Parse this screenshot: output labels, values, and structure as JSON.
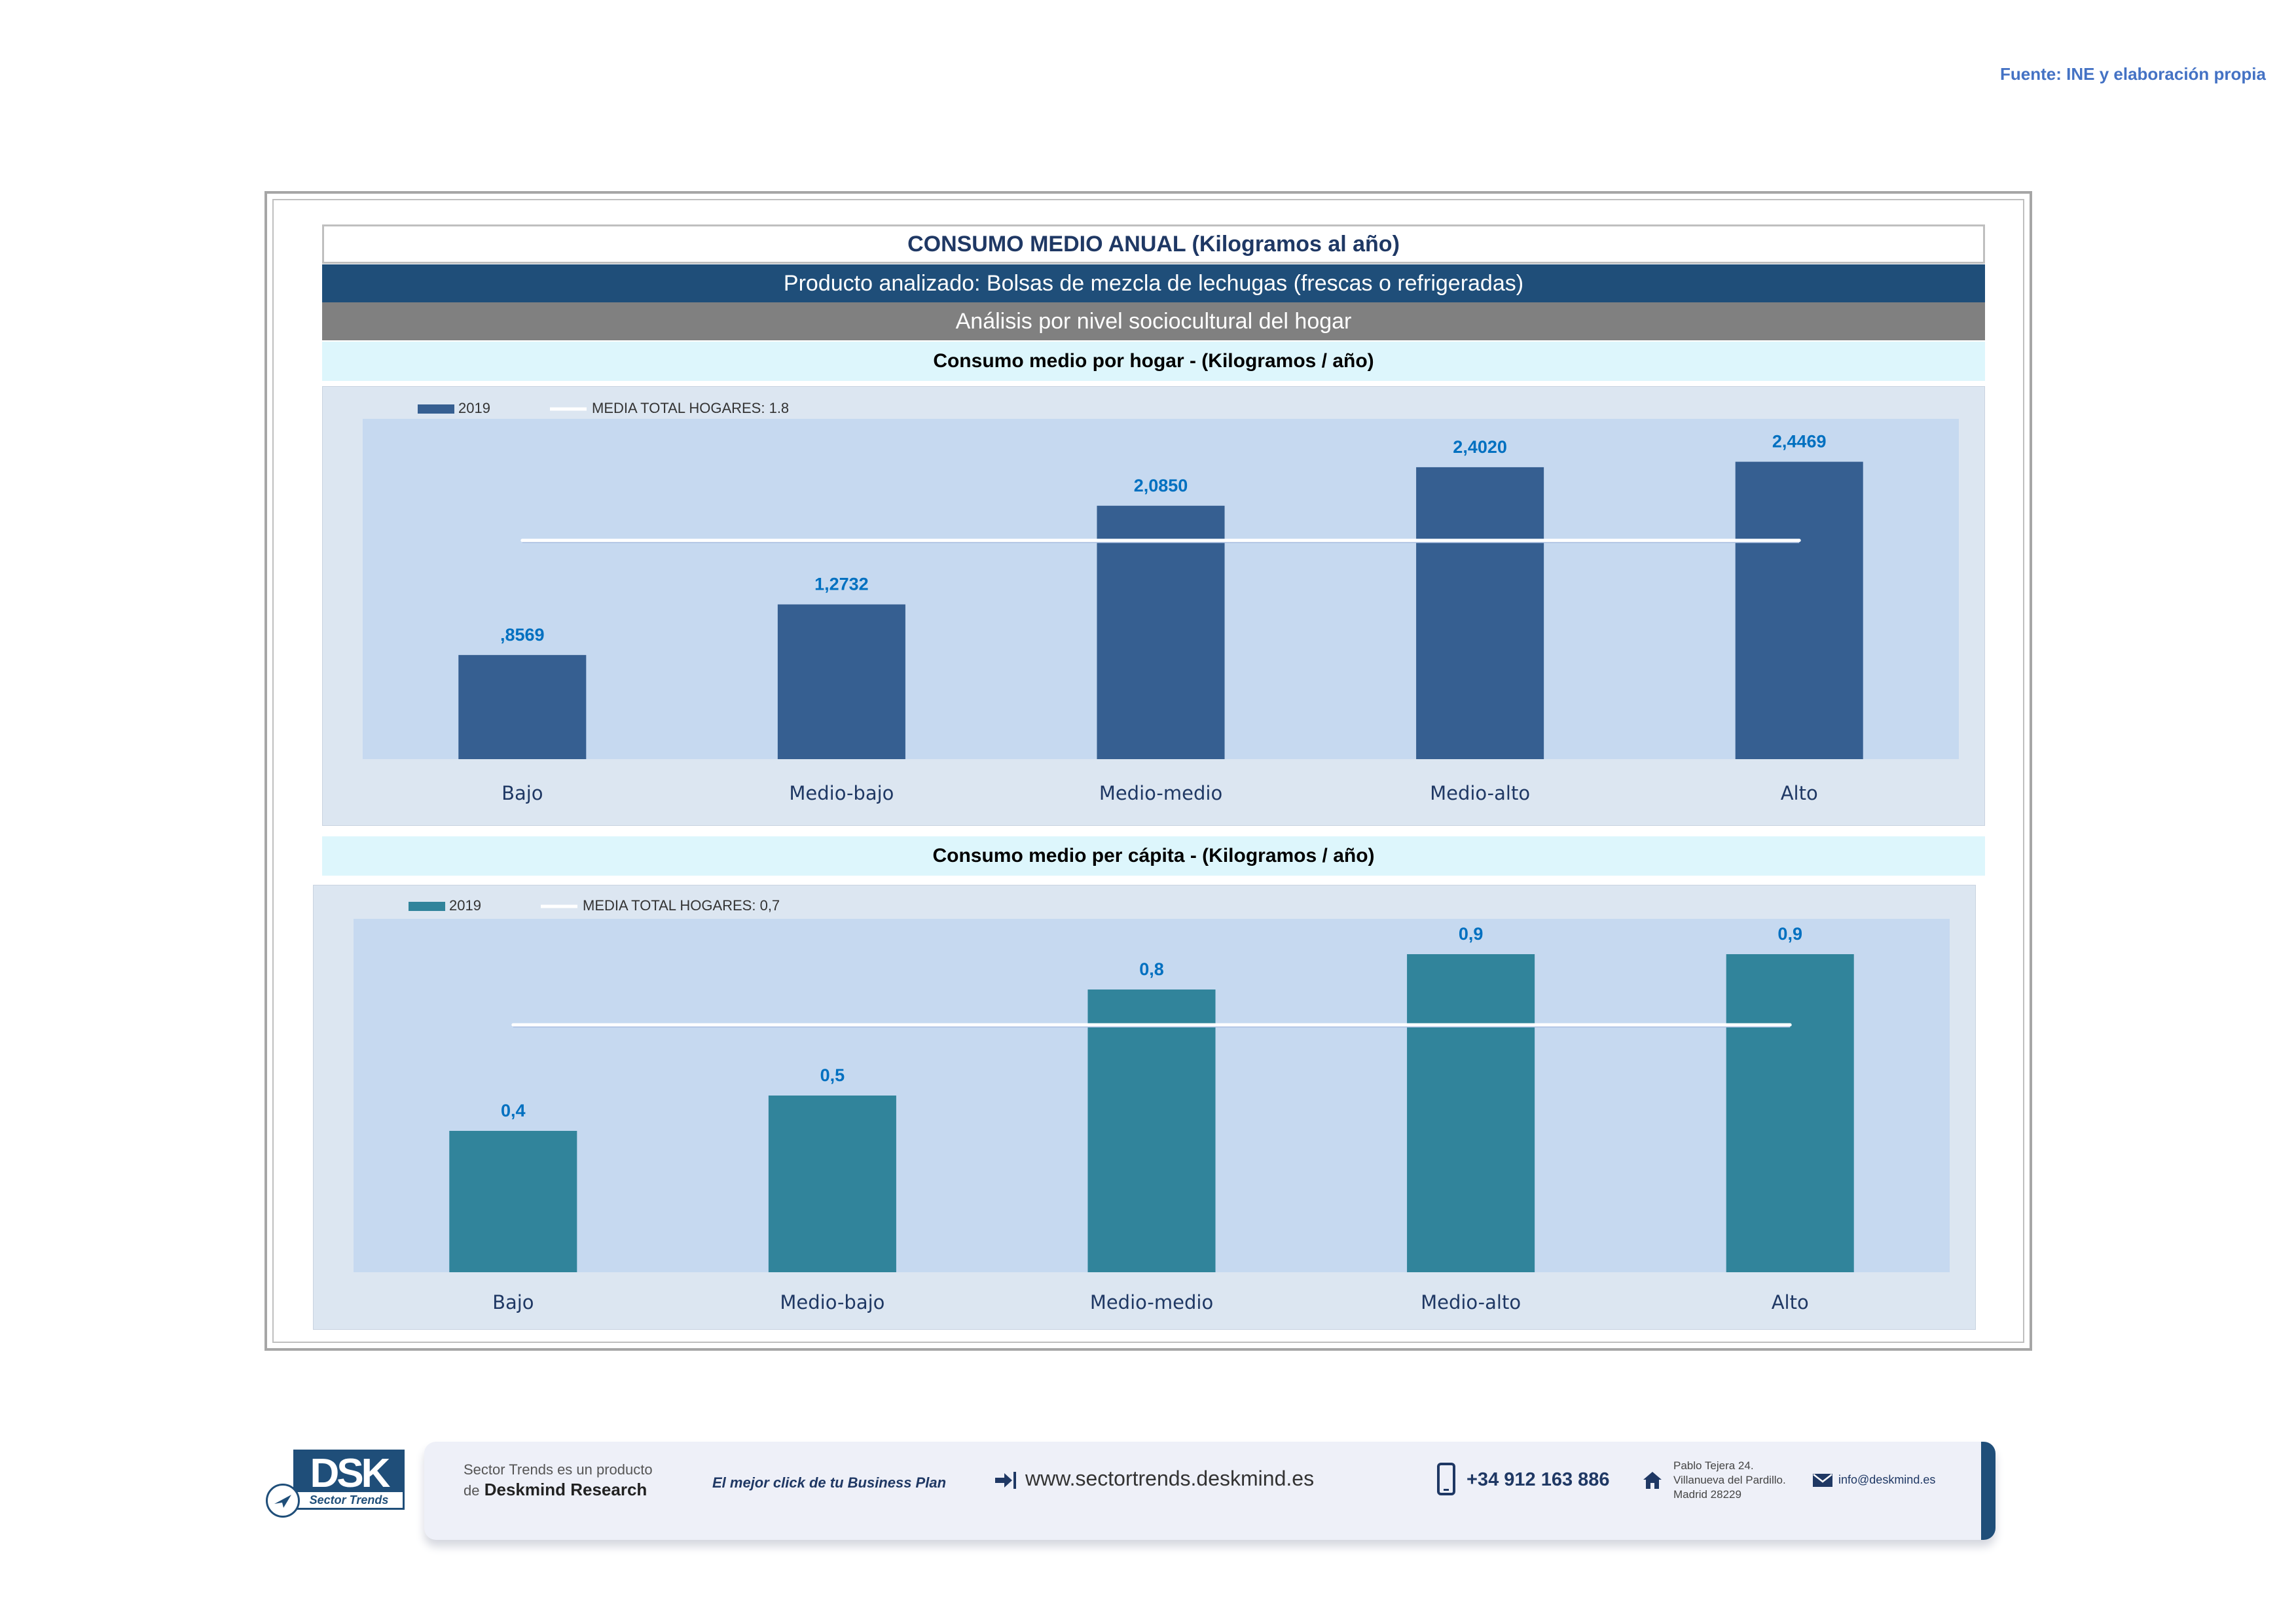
{
  "source_note": "Fuente: INE y elaboración propia",
  "header": {
    "title": "CONSUMO MEDIO ANUAL (Kilogramos al año)",
    "product": "Producto analizado: Bolsas de mezcla de lechugas (frescas o refrigeradas)",
    "analysis": "Análisis por nivel sociocultural del hogar"
  },
  "colors": {
    "bar_hogar": "#365f91",
    "bar_capita": "#31849b",
    "plot_bg": "#c6d9f0",
    "outer_bg": "#dce6f1",
    "value_label": "#0070c0",
    "axis_text": "#1f3864"
  },
  "chart_data": [
    {
      "type": "bar",
      "title": "Consumo medio por hogar -  (Kilogramos / año)",
      "categories": [
        "Bajo",
        "Medio-bajo",
        "Medio-medio",
        "Medio-alto",
        "Alto"
      ],
      "series": [
        {
          "name": "2019",
          "values": [
            0.8569,
            1.2732,
            2.085,
            2.402,
            2.4469
          ]
        }
      ],
      "value_labels": [
        ",8569",
        "1,2732",
        "2,0850",
        "2,4020",
        "2,4469"
      ],
      "reference_line": {
        "name": "MEDIA TOTAL  HOGARES:",
        "value_text": "1.8",
        "value": 1.8
      },
      "ylim": [
        0,
        2.8
      ],
      "grid": false,
      "legend": "top-left"
    },
    {
      "type": "bar",
      "title": "Consumo medio per cápita -  (Kilogramos / año)",
      "categories": [
        "Bajo",
        "Medio-bajo",
        "Medio-medio",
        "Medio-alto",
        "Alto"
      ],
      "series": [
        {
          "name": "2019",
          "values": [
            0.4,
            0.5,
            0.8,
            0.9,
            0.9
          ]
        }
      ],
      "value_labels": [
        "0,4",
        "0,5",
        "0,8",
        "0,9",
        "0,9"
      ],
      "reference_line": {
        "name": "MEDIA TOTAL  HOGARES:",
        "value_text": "0,7",
        "value": 0.7
      },
      "ylim": [
        0,
        1.0
      ],
      "grid": false,
      "legend": "top-left"
    }
  ],
  "footer": {
    "logo": "DSK",
    "logo_sub": "Sector Trends",
    "product_line1": "Sector Trends es un producto",
    "product_line2_prefix": "de",
    "product_line2_brand": "Deskmind Research",
    "slogan": "El mejor click de tu Business Plan",
    "website": "www.sectortrends.deskmind.es",
    "phone": "+34 912 163 886",
    "address_line1": "Pablo Tejera 24.",
    "address_line2": "Villanueva del Pardillo.",
    "address_line3": "Madrid 28229",
    "email": "info@deskmind.es",
    "icons": [
      "login-arrow-icon",
      "phone-icon",
      "home-icon",
      "mail-icon",
      "paper-plane-icon"
    ]
  }
}
